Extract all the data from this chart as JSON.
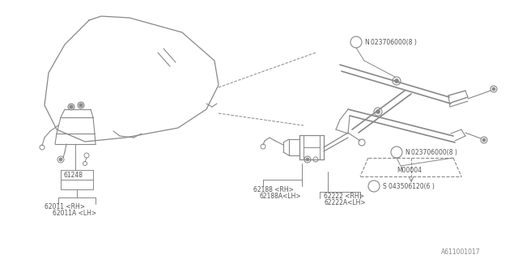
{
  "bg_color": "#ffffff",
  "line_color": "#888888",
  "text_color": "#555555",
  "fig_width": 6.4,
  "fig_height": 3.2,
  "dpi": 100,
  "footer_text": "A611001017",
  "parts": {
    "glass_label": "61248",
    "reg_label1": "62011 <RH>",
    "reg_label1a": "62011A <LH>",
    "motor_label1": "62188 <RH>",
    "motor_label1a": "62188A<LH>",
    "reg_label2": "62222 <RH>",
    "reg_label2a": "62222A<LH>",
    "bolt1": "023706000(8 )",
    "bolt2": "023706000(8 )",
    "bolt3": "043506120(6 )",
    "m00004": "M00004"
  }
}
